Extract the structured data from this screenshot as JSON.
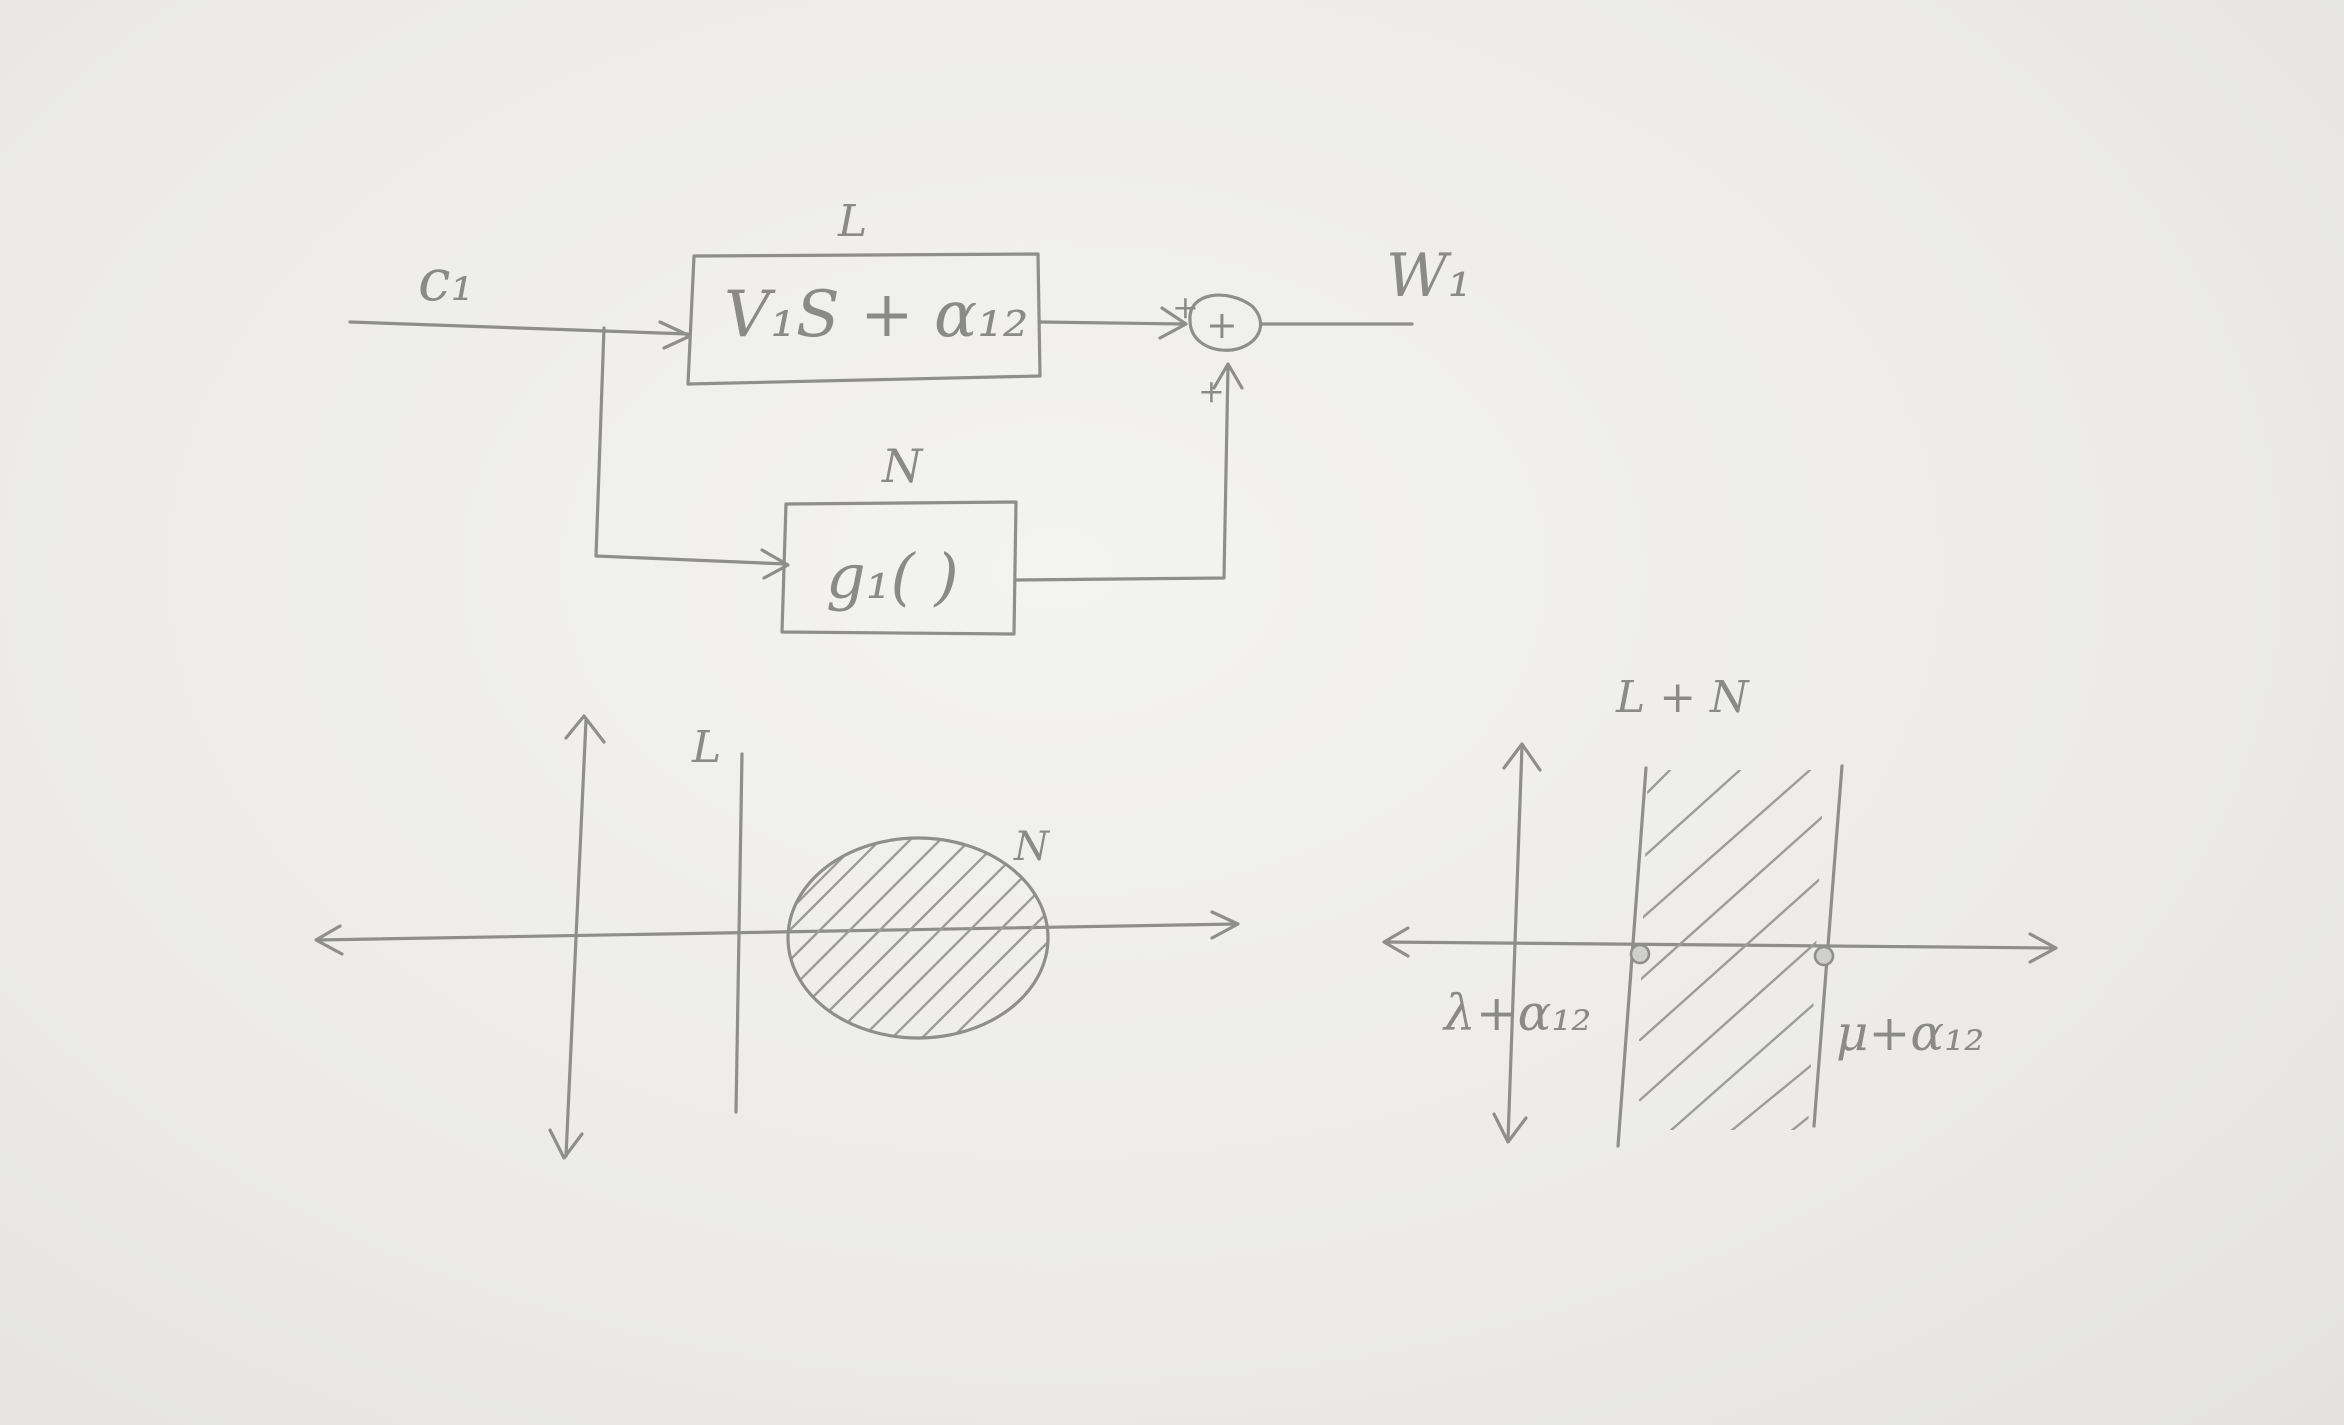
{
  "block_diagram": {
    "input_label": "c₁",
    "output_label": "W₁",
    "linear_block": {
      "tag": "L",
      "expr": "V₁S + α₁₂"
    },
    "nonlinear_block": {
      "tag": "N",
      "expr": "g₁( )"
    },
    "sum_symbol": "+",
    "sum_sign_top": "+",
    "sum_sign_bottom": "+"
  },
  "left_plot": {
    "line_label": "L",
    "region_label": "N"
  },
  "right_plot": {
    "title": "L + N",
    "left_point_label": "λ+α₁₂",
    "right_point_label": "μ+α₁₂"
  },
  "colors": {
    "pencil": "#8e8e8c",
    "paper": "#eeeeec"
  }
}
